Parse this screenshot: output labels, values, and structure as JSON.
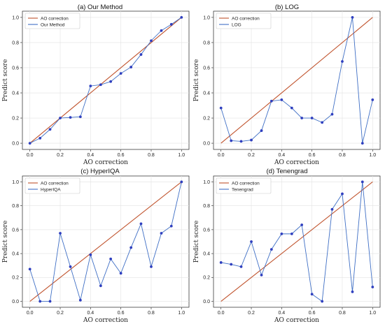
{
  "colors": {
    "reference": "#c0532d",
    "series": "#3f6fc5",
    "marker": "#2f3fbf"
  },
  "chart_data": [
    {
      "type": "line",
      "title": "(a) Our Method",
      "xlabel": "AO correction",
      "ylabel": "Predict score",
      "xlim": [
        0,
        1
      ],
      "ylim": [
        0,
        1
      ],
      "xticks": [
        "0.0",
        "0.2",
        "0.4",
        "0.6",
        "0.8",
        "1.0"
      ],
      "yticks": [
        "0.0",
        "0.2",
        "0.4",
        "0.6",
        "0.8",
        "1.0"
      ],
      "grid": true,
      "legend": "top-left",
      "series": [
        {
          "name": "AO correction",
          "x": [
            0,
            1
          ],
          "y": [
            0,
            1
          ],
          "markers": false
        },
        {
          "name": "Our Method",
          "x": [
            0,
            0.067,
            0.133,
            0.2,
            0.267,
            0.333,
            0.4,
            0.467,
            0.533,
            0.6,
            0.667,
            0.733,
            0.8,
            0.867,
            0.933,
            1.0
          ],
          "y": [
            0.0,
            0.04,
            0.11,
            0.2,
            0.205,
            0.21,
            0.455,
            0.465,
            0.49,
            0.555,
            0.605,
            0.705,
            0.815,
            0.895,
            0.945,
            1.0
          ],
          "markers": true
        }
      ]
    },
    {
      "type": "line",
      "title": "(b) LOG",
      "xlabel": "AO correction",
      "ylabel": "Predict score",
      "xlim": [
        0,
        1
      ],
      "ylim": [
        0,
        1
      ],
      "xticks": [
        "0.0",
        "0.2",
        "0.4",
        "0.6",
        "0.8",
        "1.0"
      ],
      "yticks": [
        "0.0",
        "0.2",
        "0.4",
        "0.6",
        "0.8",
        "1.0"
      ],
      "grid": true,
      "legend": "top-left",
      "series": [
        {
          "name": "AO correction",
          "x": [
            0,
            1
          ],
          "y": [
            0,
            1
          ],
          "markers": false
        },
        {
          "name": "LOG",
          "x": [
            0,
            0.067,
            0.133,
            0.2,
            0.267,
            0.333,
            0.4,
            0.467,
            0.533,
            0.6,
            0.667,
            0.733,
            0.8,
            0.867,
            0.933,
            1.0
          ],
          "y": [
            0.28,
            0.02,
            0.015,
            0.025,
            0.1,
            0.335,
            0.345,
            0.28,
            0.2,
            0.2,
            0.165,
            0.23,
            0.65,
            1.0,
            0.0,
            0.345
          ],
          "markers": true
        }
      ]
    },
    {
      "type": "line",
      "title": "(c) HyperIQA",
      "xlabel": "AO correction",
      "ylabel": "Predict score",
      "xlim": [
        0,
        1
      ],
      "ylim": [
        0,
        1
      ],
      "xticks": [
        "0.0",
        "0.2",
        "0.4",
        "0.6",
        "0.8",
        "1.0"
      ],
      "yticks": [
        "0.0",
        "0.2",
        "0.4",
        "0.6",
        "0.8",
        "1.0"
      ],
      "grid": true,
      "legend": "top-left",
      "series": [
        {
          "name": "AO correction",
          "x": [
            0,
            1
          ],
          "y": [
            0,
            1
          ],
          "markers": false
        },
        {
          "name": "HyperIQA",
          "x": [
            0,
            0.067,
            0.133,
            0.2,
            0.267,
            0.333,
            0.4,
            0.467,
            0.533,
            0.6,
            0.667,
            0.733,
            0.8,
            0.867,
            0.933,
            1.0
          ],
          "y": [
            0.27,
            0.0,
            0.0,
            0.57,
            0.29,
            0.01,
            0.39,
            0.13,
            0.355,
            0.235,
            0.45,
            0.65,
            0.29,
            0.57,
            0.63,
            1.0
          ],
          "markers": true
        }
      ]
    },
    {
      "type": "line",
      "title": "(d) Tenengrad",
      "xlabel": "AO correction",
      "ylabel": "Predict score",
      "xlim": [
        0,
        1
      ],
      "ylim": [
        0,
        1
      ],
      "xticks": [
        "0.0",
        "0.2",
        "0.4",
        "0.6",
        "0.8",
        "1.0"
      ],
      "yticks": [
        "0.0",
        "0.2",
        "0.4",
        "0.6",
        "0.8",
        "1.0"
      ],
      "grid": true,
      "legend": "top-left",
      "series": [
        {
          "name": "AO correction",
          "x": [
            0,
            1
          ],
          "y": [
            0,
            1
          ],
          "markers": false
        },
        {
          "name": "Tenengrad",
          "x": [
            0,
            0.067,
            0.133,
            0.2,
            0.267,
            0.333,
            0.4,
            0.467,
            0.533,
            0.6,
            0.667,
            0.733,
            0.8,
            0.867,
            0.933,
            1.0
          ],
          "y": [
            0.325,
            0.31,
            0.29,
            0.5,
            0.22,
            0.435,
            0.565,
            0.565,
            0.64,
            0.06,
            0.0,
            0.77,
            0.9,
            0.08,
            1.0,
            0.12
          ],
          "markers": true
        }
      ]
    }
  ]
}
